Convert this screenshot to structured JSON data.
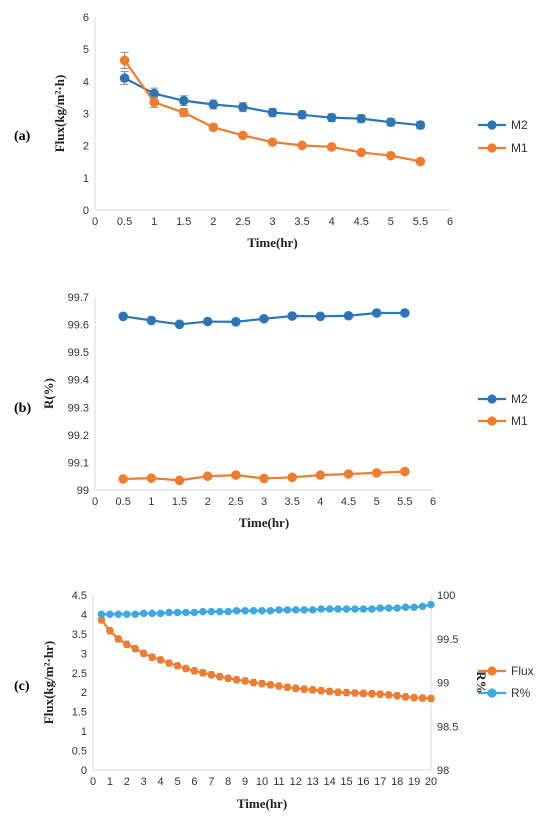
{
  "colors": {
    "M2": "#2E75B6",
    "M1": "#ED7D31",
    "Flux": "#ED7D31",
    "R": "#3FA9DF",
    "errorbar": "#8C8C8C"
  },
  "chart_data": [
    {
      "panel_label": "(a)",
      "type": "line",
      "xlabel": "Time(hr)",
      "ylabel": "Flux(kg/m²·h)",
      "xlim": [
        0,
        6
      ],
      "xticks": [
        0,
        0.5,
        1,
        1.5,
        2,
        2.5,
        3,
        3.5,
        4,
        4.5,
        5,
        5.5,
        6
      ],
      "xtick_labels": [
        "0",
        "0.5",
        "1",
        "1.5",
        "2",
        "2.5",
        "3",
        "3.5",
        "4",
        "4.5",
        "5",
        "5.5",
        "6"
      ],
      "ylim": [
        0,
        6
      ],
      "yticks": [
        0,
        1,
        2,
        3,
        4,
        5,
        6
      ],
      "ytick_labels": [
        "0",
        "1",
        "2",
        "3",
        "4",
        "5",
        "6"
      ],
      "legend_position": "right",
      "x": [
        0.5,
        1,
        1.5,
        2,
        2.5,
        3,
        3.5,
        4,
        4.5,
        5,
        5.5
      ],
      "series": [
        {
          "name": "M2",
          "color": "#2E75B6",
          "values": [
            4.1,
            3.62,
            3.4,
            3.28,
            3.2,
            3.03,
            2.96,
            2.87,
            2.84,
            2.73,
            2.64
          ],
          "errors": [
            0.2,
            0.17,
            0.15,
            0.14,
            0.14,
            0.13,
            0.12,
            0.12,
            0.12,
            0.12,
            0.11
          ]
        },
        {
          "name": "M1",
          "color": "#ED7D31",
          "values": [
            4.65,
            3.35,
            3.03,
            2.57,
            2.32,
            2.11,
            2.01,
            1.96,
            1.79,
            1.69,
            1.51
          ],
          "errors": [
            0.25,
            0.16,
            0.12,
            0.1,
            0.07,
            0.05,
            0.05,
            0.05,
            0.05,
            0.05,
            0.05
          ]
        }
      ]
    },
    {
      "panel_label": "(b)",
      "type": "line",
      "xlabel": "Time(hr)",
      "ylabel": "R(%)",
      "xlim": [
        0,
        6
      ],
      "xticks": [
        0,
        0.5,
        1,
        1.5,
        2,
        2.5,
        3,
        3.5,
        4,
        4.5,
        5,
        5.5,
        6
      ],
      "xtick_labels": [
        "0",
        "0.5",
        "1",
        "1.5",
        "2",
        "2.5",
        "3",
        "3.5",
        "4",
        "4.5",
        "5",
        "5.5",
        "6"
      ],
      "ylim": [
        99,
        99.7
      ],
      "yticks": [
        99,
        99.1,
        99.2,
        99.3,
        99.4,
        99.5,
        99.6,
        99.7
      ],
      "ytick_labels": [
        "99",
        "99.1",
        "99.2",
        "99.3",
        "99.4",
        "99.5",
        "99.6",
        "99.7"
      ],
      "legend_position": "right",
      "x": [
        0.5,
        1,
        1.5,
        2,
        2.5,
        3,
        3.5,
        4,
        4.5,
        5,
        5.5
      ],
      "series": [
        {
          "name": "M2",
          "color": "#2E75B6",
          "values": [
            99.63,
            99.615,
            99.601,
            99.611,
            99.61,
            99.621,
            99.631,
            99.63,
            99.632,
            99.642,
            99.642
          ]
        },
        {
          "name": "M1",
          "color": "#ED7D31",
          "values": [
            99.04,
            99.043,
            99.035,
            99.05,
            99.054,
            99.042,
            99.046,
            99.054,
            99.058,
            99.062,
            99.067
          ]
        }
      ]
    },
    {
      "panel_label": "(c)",
      "type": "line",
      "xlabel": "Time(hr)",
      "ylabel": "Flux(kg/m²·hr)",
      "ylabel_right": "R%",
      "xlim": [
        0,
        20
      ],
      "xticks": [
        0,
        1,
        2,
        3,
        4,
        5,
        6,
        7,
        8,
        9,
        10,
        11,
        12,
        13,
        14,
        15,
        16,
        17,
        18,
        19,
        20
      ],
      "xtick_labels": [
        "0",
        "1",
        "2",
        "3",
        "4",
        "5",
        "6",
        "7",
        "8",
        "9",
        "10",
        "11",
        "12",
        "13",
        "14",
        "15",
        "16",
        "17",
        "18",
        "19",
        "20"
      ],
      "ylim": [
        0,
        4.5
      ],
      "yticks": [
        0,
        0.5,
        1,
        1.5,
        2,
        2.5,
        3,
        3.5,
        4,
        4.5
      ],
      "ytick_labels": [
        "0",
        "0.5",
        "1",
        "1.5",
        "2",
        "2.5",
        "3",
        "3.5",
        "4",
        "4.5"
      ],
      "ylim_right": [
        98,
        100
      ],
      "yticks_right": [
        98,
        98.5,
        99,
        99.5,
        100
      ],
      "ytick_labels_right": [
        "98",
        "98.5",
        "99",
        "99.5",
        "100"
      ],
      "legend_position": "right",
      "x": [
        0.5,
        1,
        1.5,
        2,
        2.5,
        3,
        3.5,
        4,
        4.5,
        5,
        5.5,
        6,
        6.5,
        7,
        7.5,
        8,
        8.5,
        9,
        9.5,
        10,
        10.5,
        11,
        11.5,
        12,
        12.5,
        13,
        13.5,
        14,
        14.5,
        15,
        15.5,
        16,
        16.5,
        17,
        17.5,
        18,
        18.5,
        19,
        19.5,
        20
      ],
      "series": [
        {
          "name": "Flux",
          "axis": "left",
          "color": "#ED7D31",
          "errors": 0.08,
          "values": [
            3.86,
            3.58,
            3.37,
            3.23,
            3.12,
            3.0,
            2.9,
            2.83,
            2.75,
            2.68,
            2.61,
            2.55,
            2.5,
            2.45,
            2.4,
            2.36,
            2.32,
            2.29,
            2.25,
            2.22,
            2.19,
            2.16,
            2.13,
            2.1,
            2.08,
            2.06,
            2.04,
            2.02,
            2.0,
            1.99,
            1.98,
            1.97,
            1.96,
            1.95,
            1.93,
            1.91,
            1.88,
            1.86,
            1.85,
            1.84
          ]
        },
        {
          "name": "R%",
          "axis": "right",
          "color": "#3FA9DF",
          "values": [
            99.78,
            99.78,
            99.78,
            99.78,
            99.78,
            99.79,
            99.79,
            99.79,
            99.8,
            99.8,
            99.8,
            99.8,
            99.81,
            99.81,
            99.81,
            99.81,
            99.82,
            99.82,
            99.82,
            99.82,
            99.82,
            99.83,
            99.83,
            99.83,
            99.83,
            99.83,
            99.84,
            99.84,
            99.84,
            99.84,
            99.84,
            99.84,
            99.84,
            99.85,
            99.85,
            99.85,
            99.86,
            99.86,
            99.87,
            99.89
          ]
        }
      ]
    }
  ]
}
